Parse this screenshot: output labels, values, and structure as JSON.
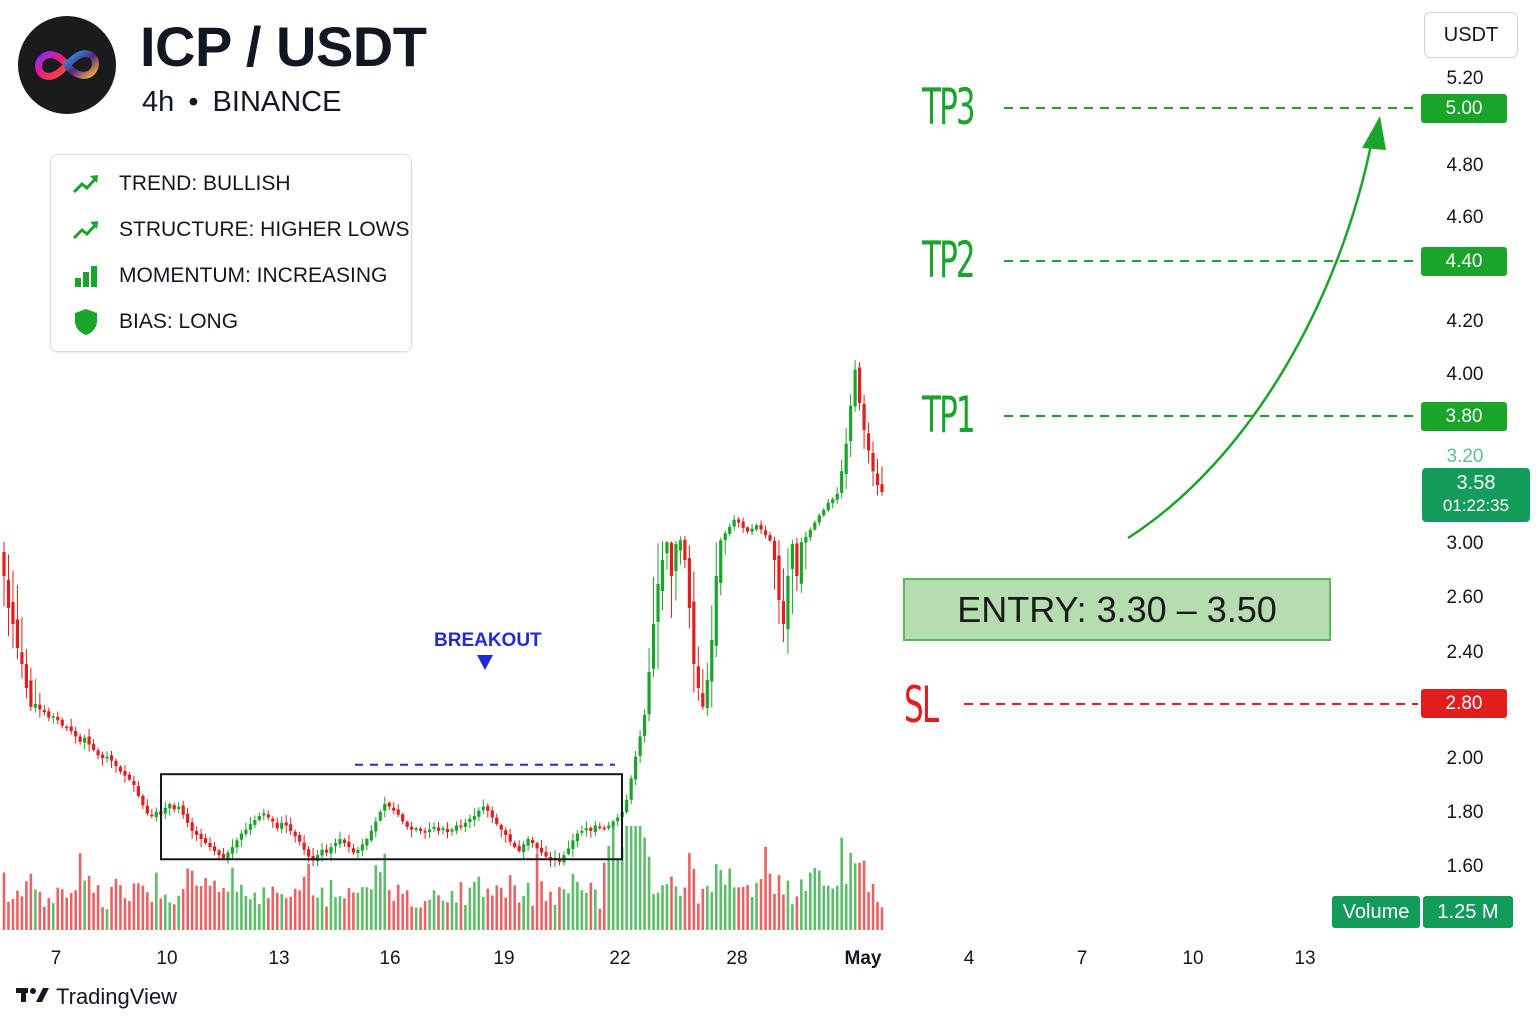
{
  "header": {
    "title": "ICP / USDT",
    "timeframe": "4h",
    "separator": "•",
    "exchange": "BINANCE"
  },
  "info_panel": {
    "items": [
      {
        "icon": "trend-up-icon",
        "label": "TREND: BULLISH",
        "color": "#1aa52a"
      },
      {
        "icon": "trend-up-icon",
        "label": "STRUCTURE: HIGHER LOWS",
        "color": "#1aa52a"
      },
      {
        "icon": "bar-chart-icon",
        "label": "MOMENTUM: INCREASING",
        "color": "#1aa52a"
      },
      {
        "icon": "shield-icon",
        "label": "BIAS: LONG",
        "color": "#1aa52a"
      }
    ]
  },
  "levels": {
    "tp3": {
      "label": "TP3",
      "price": 5.0,
      "price_text": "5.00"
    },
    "tp2": {
      "label": "TP2",
      "price": 4.4,
      "price_text": "4.40"
    },
    "tp1": {
      "label": "TP1",
      "price": 3.8,
      "price_text": "3.80"
    },
    "sl": {
      "label": "SL",
      "price": 2.8,
      "price_text": "2.80"
    },
    "entry": {
      "label": "ENTRY: 3.30 – 3.50",
      "low": 3.3,
      "high": 3.5
    }
  },
  "price_axis": {
    "currency_button": "USDT",
    "labels": [
      "5.20",
      "4.80",
      "4.60",
      "4.20",
      "4.00",
      "3.00",
      "2.60",
      "2.40",
      "2.00",
      "1.80",
      "1.60"
    ],
    "faded_label": "3.20",
    "current_price": "3.58",
    "countdown": "01:22:35"
  },
  "time_axis": {
    "labels": [
      "7",
      "10",
      "13",
      "16",
      "19",
      "22",
      "28",
      "May",
      "4",
      "7",
      "10",
      "13"
    ],
    "bold_label": "May"
  },
  "volume": {
    "label": "Volume",
    "value": "1.25 M"
  },
  "annotations": {
    "breakout": "BREAKOUT",
    "consolidation_range": {
      "low": 1.65,
      "high": 2.28
    }
  },
  "brand": {
    "name": "TradingView"
  },
  "colors": {
    "up": "#1aa52a",
    "down": "#e21d1d",
    "breakout": "#1f2bd8",
    "entry_fill": "#b5ddb0"
  },
  "chart_data": {
    "type": "candlestick",
    "title": "ICP / USDT",
    "interval": "4h",
    "y_unit": "USDT",
    "start_date": "Apr 6",
    "close": [
      2.96,
      2.92,
      2.9,
      2.87,
      2.85,
      2.82,
      2.78,
      2.8,
      2.76,
      2.74,
      2.7,
      2.71,
      2.68,
      2.64,
      2.63,
      2.6,
      2.56,
      2.52,
      2.55,
      2.5,
      2.46,
      2.42,
      2.4,
      2.41,
      2.38,
      2.34,
      2.3,
      2.27,
      2.24,
      2.2,
      2.12,
      2.05,
      1.99,
      1.97,
      2.0,
      1.98,
      2.03,
      2.06,
      2.02,
      2.04,
      1.98,
      1.92,
      1.86,
      1.83,
      1.8,
      1.77,
      1.74,
      1.71,
      1.68,
      1.66,
      1.7,
      1.74,
      1.79,
      1.84,
      1.87,
      1.91,
      1.94,
      1.97,
      1.99,
      1.96,
      1.93,
      1.88,
      1.92,
      1.9,
      1.86,
      1.82,
      1.78,
      1.72,
      1.67,
      1.64,
      1.68,
      1.72,
      1.7,
      1.74,
      1.77,
      1.8,
      1.77,
      1.74,
      1.7,
      1.72,
      1.76,
      1.8,
      1.86,
      1.93,
      2.0,
      2.06,
      2.04,
      2.01,
      1.98,
      1.93,
      1.89,
      1.87,
      1.88,
      1.86,
      1.85,
      1.87,
      1.89,
      1.86,
      1.88,
      1.85,
      1.87,
      1.9,
      1.89,
      1.92,
      1.95,
      1.97,
      2.01,
      2.04,
      2.01,
      1.96,
      1.91,
      1.87,
      1.83,
      1.78,
      1.74,
      1.71,
      1.76,
      1.8,
      1.77,
      1.73,
      1.7,
      1.67,
      1.64,
      1.66,
      1.63,
      1.68,
      1.73,
      1.79,
      1.84,
      1.86,
      1.88,
      1.86,
      1.9,
      1.89,
      1.88,
      1.9,
      1.93,
      1.96,
      2.0,
      2.09,
      2.25,
      2.41,
      2.56,
      2.72,
      2.84,
      2.9,
      2.95,
      2.98,
      3.02,
      2.96,
      3.0,
      3.04,
      2.98,
      2.92,
      2.85,
      2.82,
      2.78,
      2.83,
      2.88,
      2.96,
      3.04,
      3.12,
      3.19,
      3.27,
      3.24,
      3.18,
      3.14,
      3.17,
      3.21,
      3.16,
      3.1,
      3.04,
      2.98,
      2.93,
      2.9,
      2.96,
      3.0,
      2.96,
      3.02,
      3.08,
      3.16,
      3.24,
      3.32,
      3.38,
      3.46,
      3.5,
      3.56,
      3.64,
      3.72,
      3.84,
      3.98,
      3.85,
      3.76,
      3.7,
      3.64,
      3.6,
      3.58
    ],
    "volume_relative": "increasing on breakout",
    "levels": {
      "TP3": 5.0,
      "TP2": 4.4,
      "TP1": 3.8,
      "SL": 2.8,
      "entry_low": 3.3,
      "entry_high": 3.5
    },
    "x_ticks": [
      "7",
      "10",
      "13",
      "16",
      "19",
      "22",
      "28",
      "May",
      "4",
      "7",
      "10",
      "13"
    ],
    "y_ticks": [
      "5.20",
      "5.00",
      "4.80",
      "4.60",
      "4.40",
      "4.20",
      "4.00",
      "3.80",
      "3.58",
      "3.20",
      "3.00",
      "2.80",
      "2.60",
      "2.40",
      "2.00",
      "1.80",
      "1.60"
    ],
    "annotations": [
      "BREAKOUT",
      "ENTRY: 3.30 – 3.50"
    ],
    "grid": false,
    "legend": "none"
  }
}
